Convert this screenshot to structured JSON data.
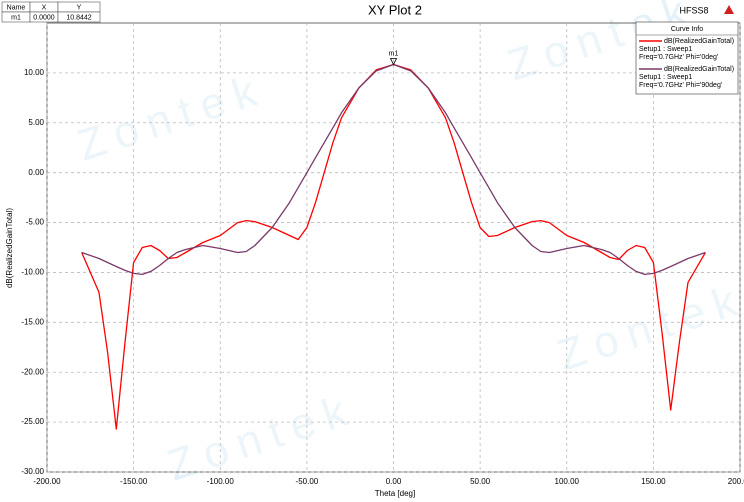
{
  "chart_data": {
    "type": "line",
    "title": "XY Plot 2",
    "brand": "HFSS8",
    "watermark": "Zontek",
    "x_label": "Theta [deg]",
    "y_label": "dB(RealizedGainTotal)",
    "legend_title": "Curve Info",
    "legend_position": "top-right",
    "grid": true,
    "x": [
      -180,
      -170,
      -165,
      -160,
      -155,
      -150,
      -145,
      -140,
      -135,
      -130,
      -125,
      -120,
      -110,
      -100,
      -90,
      -85,
      -80,
      -70,
      -60,
      -55,
      -50,
      -45,
      -40,
      -35,
      -30,
      -20,
      -10,
      0,
      10,
      20,
      30,
      35,
      40,
      45,
      50,
      55,
      60,
      70,
      80,
      85,
      90,
      100,
      110,
      120,
      125,
      130,
      135,
      140,
      145,
      150,
      155,
      160,
      165,
      170,
      180
    ],
    "series": [
      {
        "name": "dB(RealizedGainTotal)",
        "setup": "Setup1 : Sweep1",
        "freq": "Freq='0.7GHz' Phi='0deg'",
        "color": "#ff0000",
        "values": [
          -8,
          -12,
          -18,
          -25.7,
          -17,
          -9,
          -7.5,
          -7.3,
          -7.8,
          -8.6,
          -8.5,
          -8,
          -7,
          -6.3,
          -5,
          -4.8,
          -4.9,
          -5.5,
          -6.3,
          -6.7,
          -5.5,
          -3,
          0,
          3,
          5.5,
          8.5,
          10.3,
          10.84,
          10.3,
          8.5,
          5.5,
          3,
          0,
          -3,
          -5.5,
          -6.4,
          -6.3,
          -5.5,
          -4.9,
          -4.8,
          -5,
          -6.3,
          -7,
          -8,
          -8.5,
          -8.7,
          -7.8,
          -7.3,
          -7.5,
          -9,
          -16,
          -23.8,
          -17,
          -11,
          -8
        ]
      },
      {
        "name": "dB(RealizedGainTotal)",
        "setup": "Setup1 : Sweep1",
        "freq": "Freq='0.7GHz' Phi='90deg'",
        "color": "#7a3a6a",
        "values": [
          -8,
          -8.6,
          -9,
          -9.4,
          -9.8,
          -10.1,
          -10.2,
          -9.9,
          -9.3,
          -8.6,
          -8,
          -7.7,
          -7.3,
          -7.6,
          -8,
          -7.9,
          -7.3,
          -5.5,
          -3,
          -1.5,
          0,
          1.5,
          3,
          4.5,
          6,
          8.5,
          10.2,
          10.84,
          10.2,
          8.5,
          6,
          4.5,
          3,
          1.5,
          0,
          -1.5,
          -3,
          -5.5,
          -7.3,
          -7.9,
          -8,
          -7.6,
          -7.3,
          -7.7,
          -8,
          -8.6,
          -9.3,
          -9.9,
          -10.2,
          -10.1,
          -9.8,
          -9.4,
          -9,
          -8.6,
          -8
        ]
      }
    ],
    "marker": {
      "header": [
        "Name",
        "X",
        "Y"
      ],
      "name": "m1",
      "x": 0,
      "y": 10.8442,
      "x_label": "0.0000",
      "y_label": "10.8442"
    },
    "xlim": [
      -200,
      200
    ],
    "xticks": [
      {
        "value": -200,
        "label": "-200.00"
      },
      {
        "value": -150,
        "label": "-150.00"
      },
      {
        "value": -100,
        "label": "-100.00"
      },
      {
        "value": -50,
        "label": "-50.00"
      },
      {
        "value": 0,
        "label": "0.00"
      },
      {
        "value": 50,
        "label": "50.00"
      },
      {
        "value": 100,
        "label": "100.00"
      },
      {
        "value": 150,
        "label": "150.00"
      },
      {
        "value": 200,
        "label": "200.00"
      }
    ],
    "ylim": [
      -30,
      15
    ],
    "yticks": [
      {
        "value": 10,
        "label": "10.00"
      },
      {
        "value": 5,
        "label": "5.00"
      },
      {
        "value": 0,
        "label": "0.00"
      },
      {
        "value": -5,
        "label": "-5.00"
      },
      {
        "value": -10,
        "label": "-10.00"
      },
      {
        "value": -15,
        "label": "-15.00"
      },
      {
        "value": -20,
        "label": "-20.00"
      },
      {
        "value": -25,
        "label": "-25.00"
      },
      {
        "value": -30,
        "label": "-30.00"
      }
    ]
  }
}
